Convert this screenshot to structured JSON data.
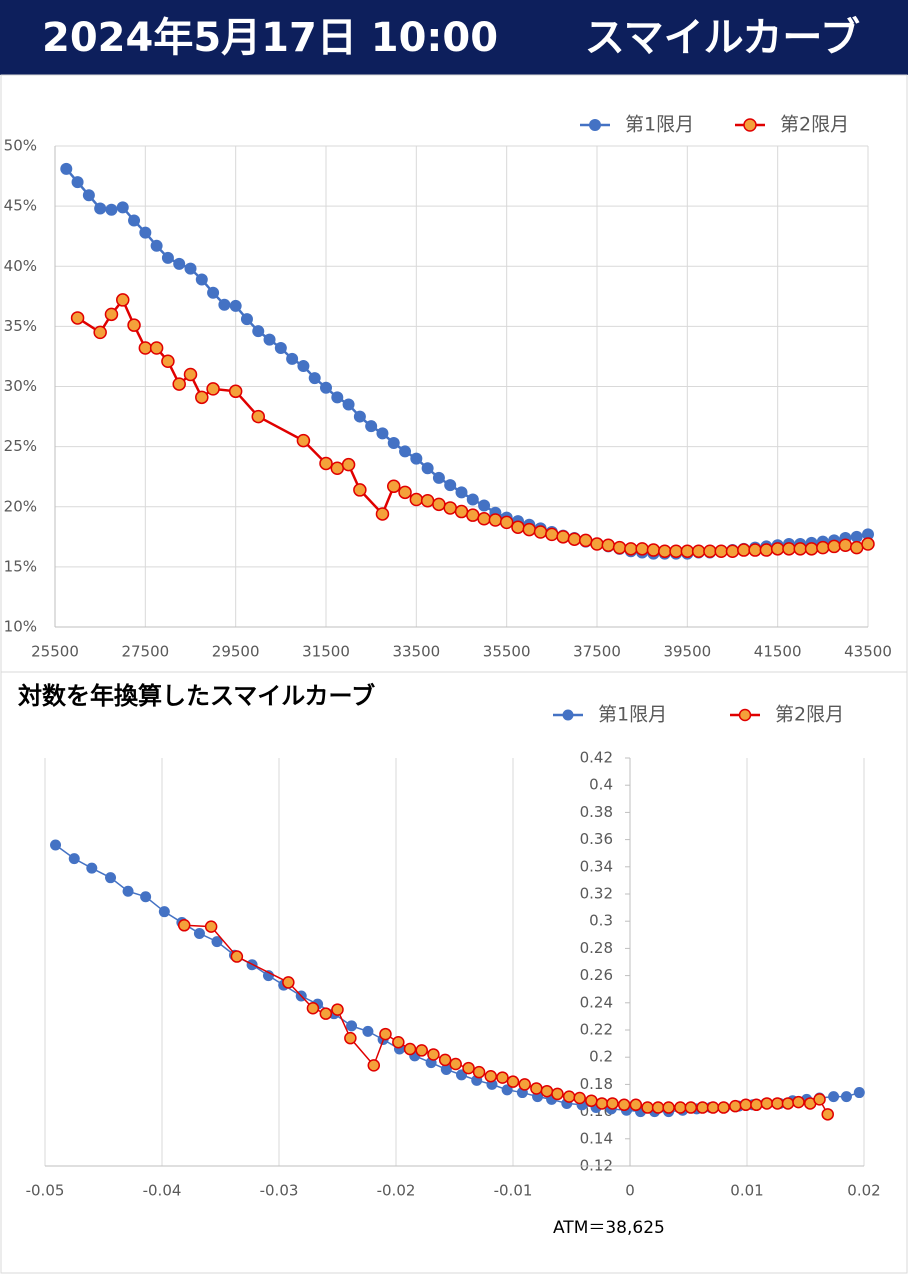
{
  "header": {
    "date": "2024年5月17日 10:00",
    "title": "スマイルカーブ"
  },
  "chart_data": [
    {
      "type": "line",
      "legend": "top-right",
      "xlim": [
        25500,
        43500
      ],
      "xticks": [
        25500,
        27500,
        29500,
        31500,
        33500,
        35500,
        37500,
        39500,
        41500,
        43500
      ],
      "ylim": [
        10,
        50
      ],
      "yticks": [
        {
          "value": 10,
          "label": "10%"
        },
        {
          "value": 15,
          "label": "15%"
        },
        {
          "value": 20,
          "label": "20%"
        },
        {
          "value": 25,
          "label": "25%"
        },
        {
          "value": 30,
          "label": "30%"
        },
        {
          "value": 35,
          "label": "35%"
        },
        {
          "value": 40,
          "label": "40%"
        },
        {
          "value": 45,
          "label": "45%"
        },
        {
          "value": 50,
          "label": "50%"
        }
      ],
      "grid": {
        "x": true,
        "y": true
      },
      "series": [
        {
          "name": "第1限月",
          "color": "#4472c4",
          "marker_fill": "#4472c4",
          "x": [
            25750,
            26000,
            26250,
            26500,
            26750,
            27000,
            27250,
            27500,
            27750,
            28000,
            28250,
            28500,
            28750,
            29000,
            29250,
            29500,
            29750,
            30000,
            30250,
            30500,
            30750,
            31000,
            31250,
            31500,
            31750,
            32000,
            32250,
            32500,
            32750,
            33000,
            33250,
            33500,
            33750,
            34000,
            34250,
            34500,
            34750,
            35000,
            35250,
            35500,
            35750,
            36000,
            36250,
            36500,
            36750,
            37000,
            37250,
            37500,
            37750,
            38000,
            38250,
            38500,
            38750,
            39000,
            39250,
            39500,
            39750,
            40000,
            40250,
            40500,
            40750,
            41000,
            41250,
            41500,
            41750,
            42000,
            42250,
            42500,
            42750,
            43000,
            43250,
            43500
          ],
          "values": [
            48.1,
            47.0,
            45.9,
            44.8,
            44.7,
            44.9,
            43.8,
            42.8,
            41.7,
            40.7,
            40.2,
            39.8,
            38.9,
            37.8,
            36.8,
            36.7,
            35.6,
            34.6,
            33.9,
            33.2,
            32.3,
            31.7,
            30.7,
            29.9,
            29.1,
            28.5,
            27.5,
            26.7,
            26.1,
            25.3,
            24.6,
            24.0,
            23.2,
            22.4,
            21.8,
            21.2,
            20.6,
            20.1,
            19.5,
            19.1,
            18.8,
            18.5,
            18.2,
            17.9,
            17.6,
            17.4,
            17.1,
            16.9,
            16.7,
            16.5,
            16.3,
            16.2,
            16.1,
            16.1,
            16.1,
            16.1,
            16.2,
            16.2,
            16.3,
            16.4,
            16.5,
            16.6,
            16.7,
            16.8,
            16.9,
            16.9,
            17.0,
            17.1,
            17.2,
            17.4,
            17.5,
            17.7
          ]
        },
        {
          "name": "第2限月",
          "color": "#e00000",
          "marker_fill": "#f4a13a",
          "x": [
            26000,
            26500,
            26750,
            27000,
            27250,
            27500,
            27750,
            28000,
            28250,
            28500,
            28750,
            29000,
            29500,
            30000,
            31000,
            31500,
            31750,
            32000,
            32250,
            32750,
            33000,
            33250,
            33500,
            33750,
            34000,
            34250,
            34500,
            34750,
            35000,
            35250,
            35500,
            35750,
            36000,
            36250,
            36500,
            36750,
            37000,
            37250,
            37500,
            37750,
            38000,
            38250,
            38500,
            38750,
            39000,
            39250,
            39500,
            39750,
            40000,
            40250,
            40500,
            40750,
            41000,
            41250,
            41500,
            41750,
            42000,
            42250,
            42500,
            42750,
            43000,
            43250,
            43500
          ],
          "values": [
            35.7,
            34.5,
            36.0,
            37.2,
            35.1,
            33.2,
            33.2,
            32.1,
            30.2,
            31.0,
            29.1,
            29.8,
            29.6,
            27.5,
            25.5,
            23.6,
            23.2,
            23.5,
            21.4,
            19.4,
            21.7,
            21.2,
            20.6,
            20.5,
            20.2,
            19.9,
            19.6,
            19.3,
            19.0,
            18.9,
            18.7,
            18.3,
            18.1,
            17.9,
            17.7,
            17.5,
            17.3,
            17.2,
            16.9,
            16.8,
            16.6,
            16.5,
            16.5,
            16.4,
            16.3,
            16.3,
            16.3,
            16.3,
            16.3,
            16.3,
            16.3,
            16.4,
            16.4,
            16.4,
            16.5,
            16.5,
            16.5,
            16.5,
            16.6,
            16.7,
            16.8,
            16.6,
            16.9
          ]
        }
      ]
    },
    {
      "type": "line",
      "title": "対数を年換算したスマイルカーブ",
      "annotation": "ATM＝38,625",
      "legend": "top-right",
      "xlim": [
        -0.05,
        0.02
      ],
      "xticks": [
        -0.05,
        -0.04,
        -0.03,
        -0.02,
        -0.01,
        0,
        0.01,
        0.02
      ],
      "ylim": [
        0.12,
        0.42
      ],
      "yticks": [
        0.12,
        0.14,
        0.16,
        0.18,
        0.2,
        0.22,
        0.24,
        0.26,
        0.28,
        0.3,
        0.32,
        0.34,
        0.36,
        0.38,
        0.4,
        0.42
      ],
      "grid": {
        "x": true,
        "y": false
      },
      "y_axis_at": 0,
      "series": [
        {
          "name": "第1限月",
          "color": "#4472c4",
          "marker_fill": "#4472c4",
          "x": [
            -0.0491,
            -0.0475,
            -0.046,
            -0.0444,
            -0.0429,
            -0.0414,
            -0.0398,
            -0.0383,
            -0.0368,
            -0.0353,
            -0.0338,
            -0.0323,
            -0.0309,
            -0.0296,
            -0.0281,
            -0.0267,
            -0.0253,
            -0.0238,
            -0.0224,
            -0.0211,
            -0.0197,
            -0.0184,
            -0.017,
            -0.0157,
            -0.0144,
            -0.0131,
            -0.0118,
            -0.0105,
            -0.0092,
            -0.0079,
            -0.0067,
            -0.0054,
            -0.0041,
            -0.0029,
            -0.0016,
            -0.0003,
            0.0009,
            0.0021,
            0.0033,
            0.0045,
            0.0057,
            0.0069,
            0.0081,
            0.0093,
            0.0105,
            0.0116,
            0.0128,
            0.0139,
            0.0151,
            0.0162,
            0.0174,
            0.0185,
            0.0196
          ],
          "values": [
            0.356,
            0.346,
            0.339,
            0.332,
            0.322,
            0.318,
            0.307,
            0.299,
            0.291,
            0.285,
            0.275,
            0.268,
            0.26,
            0.253,
            0.245,
            0.239,
            0.232,
            0.223,
            0.219,
            0.213,
            0.206,
            0.201,
            0.196,
            0.191,
            0.187,
            0.183,
            0.18,
            0.176,
            0.174,
            0.171,
            0.169,
            0.166,
            0.165,
            0.163,
            0.162,
            0.161,
            0.16,
            0.16,
            0.16,
            0.161,
            0.162,
            0.163,
            0.163,
            0.164,
            0.165,
            0.166,
            0.166,
            0.168,
            0.169,
            0.17,
            0.171,
            0.171,
            0.174
          ]
        },
        {
          "name": "第2限月",
          "color": "#e00000",
          "marker_fill": "#f4a13a",
          "x": [
            -0.0381,
            -0.0358,
            -0.0336,
            -0.0292,
            -0.0271,
            -0.026,
            -0.025,
            -0.0239,
            -0.0219,
            -0.0209,
            -0.0198,
            -0.0188,
            -0.0178,
            -0.0168,
            -0.0158,
            -0.0149,
            -0.0138,
            -0.0129,
            -0.0119,
            -0.0109,
            -0.01,
            -0.009,
            -0.008,
            -0.0071,
            -0.0062,
            -0.0052,
            -0.0043,
            -0.0033,
            -0.0024,
            -0.0015,
            -0.0005,
            0.0005,
            0.0015,
            0.0024,
            0.0033,
            0.0043,
            0.0052,
            0.0062,
            0.0071,
            0.008,
            0.009,
            0.0099,
            0.0108,
            0.0117,
            0.0126,
            0.0135,
            0.0144,
            0.0154,
            0.0162,
            0.0169
          ],
          "values": [
            0.297,
            0.296,
            0.274,
            0.255,
            0.236,
            0.232,
            0.235,
            0.214,
            0.194,
            0.217,
            0.211,
            0.206,
            0.205,
            0.202,
            0.198,
            0.195,
            0.192,
            0.189,
            0.186,
            0.185,
            0.182,
            0.18,
            0.177,
            0.175,
            0.173,
            0.171,
            0.17,
            0.168,
            0.166,
            0.166,
            0.165,
            0.165,
            0.163,
            0.163,
            0.163,
            0.163,
            0.163,
            0.163,
            0.163,
            0.163,
            0.164,
            0.165,
            0.165,
            0.166,
            0.166,
            0.166,
            0.167,
            0.166,
            0.169,
            0.158
          ]
        }
      ]
    }
  ]
}
